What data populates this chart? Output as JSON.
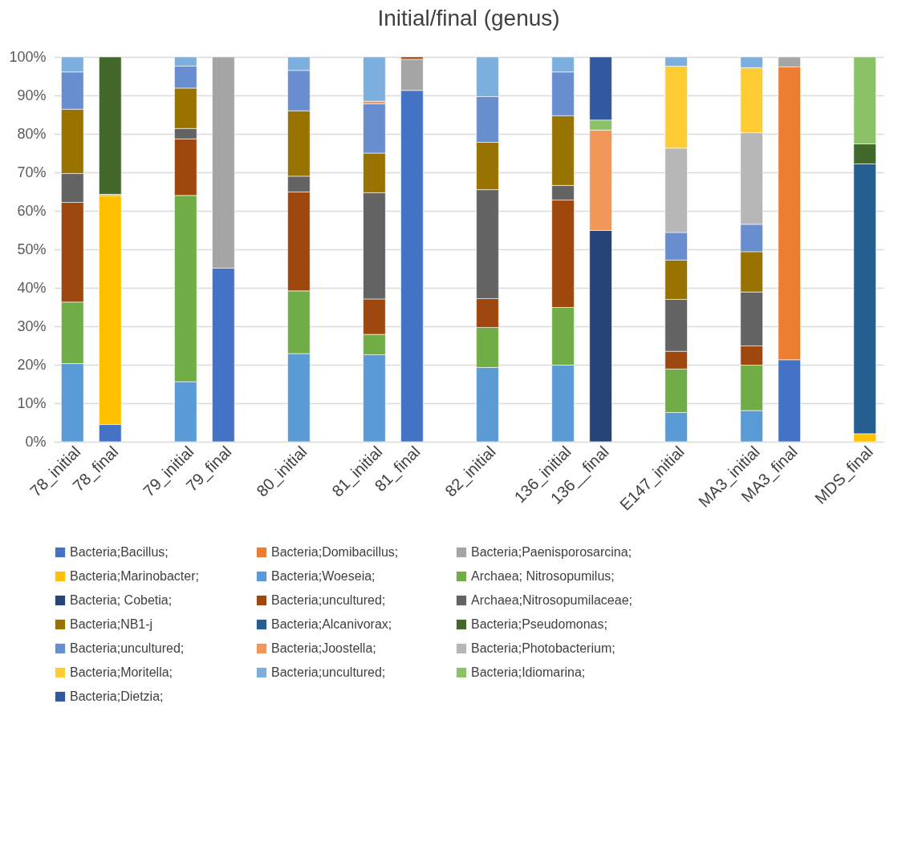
{
  "chart_data": {
    "type": "bar",
    "stacked": true,
    "title": "Initial/final (genus)",
    "categories": [
      "78_initial",
      "78_final",
      null,
      "79_initial",
      "79_final",
      null,
      "80_initial",
      null,
      "81_initial",
      "81_final",
      null,
      "82_initial",
      null,
      "136_initial",
      "136__final",
      null,
      "E147_initial",
      null,
      "MA3_initial",
      "MA3_final",
      null,
      "MDS_final"
    ],
    "ylim": [
      0,
      100
    ],
    "yticks": [
      {
        "value": 0,
        "label": "0%"
      },
      {
        "value": 10,
        "label": "10%"
      },
      {
        "value": 20,
        "label": "20%"
      },
      {
        "value": 30,
        "label": "30%"
      },
      {
        "value": 40,
        "label": "40%"
      },
      {
        "value": 50,
        "label": "50%"
      },
      {
        "value": 60,
        "label": "60%"
      },
      {
        "value": 70,
        "label": "70%"
      },
      {
        "value": 80,
        "label": "80%"
      },
      {
        "value": 90,
        "label": "90%"
      },
      {
        "value": 100,
        "label": "100%"
      }
    ],
    "grid": "y",
    "legend": "bottom",
    "series": [
      {
        "name": "Bacteria;Bacillus;",
        "color": "#4472c4",
        "values": [
          null,
          4.5,
          null,
          null,
          45.1,
          null,
          null,
          null,
          null,
          91.3,
          null,
          null,
          null,
          null,
          null,
          null,
          null,
          null,
          null,
          21.3,
          null,
          null
        ]
      },
      {
        "name": "Bacteria;Domibacillus;",
        "color": "#ed7d31",
        "values": [
          null,
          null,
          null,
          null,
          null,
          null,
          null,
          null,
          null,
          null,
          null,
          null,
          null,
          null,
          null,
          null,
          null,
          null,
          null,
          76.1,
          null,
          null
        ]
      },
      {
        "name": "Bacteria;Paenisporosarcina;",
        "color": "#a5a5a5",
        "values": [
          null,
          null,
          null,
          null,
          54.9,
          null,
          null,
          null,
          null,
          8.1,
          null,
          null,
          null,
          null,
          null,
          null,
          null,
          null,
          null,
          2.6,
          null,
          null
        ]
      },
      {
        "name": "Bacteria;Marinobacter;",
        "color": "#ffc000",
        "values": [
          null,
          59.5,
          null,
          null,
          null,
          null,
          null,
          null,
          null,
          null,
          null,
          null,
          null,
          null,
          null,
          null,
          null,
          null,
          null,
          null,
          null,
          2.1
        ]
      },
      {
        "name": "Bacteria;Woeseia;",
        "color": "#5b9bd5",
        "values": [
          20.3,
          null,
          null,
          15.6,
          null,
          null,
          22.9,
          null,
          22.6,
          null,
          null,
          19.3,
          null,
          19.9,
          null,
          null,
          7.6,
          null,
          8.1,
          null,
          null,
          null
        ]
      },
      {
        "name": "Archaea; Nitrosopumilus;",
        "color": "#70ad47",
        "values": [
          16.0,
          0.3,
          null,
          48.4,
          null,
          null,
          16.3,
          null,
          5.3,
          null,
          null,
          10.4,
          null,
          15.0,
          null,
          null,
          11.3,
          null,
          11.8,
          null,
          null,
          null
        ]
      },
      {
        "name": "Bacteria; Cobetia;",
        "color": "#264478",
        "values": [
          null,
          null,
          null,
          null,
          null,
          null,
          null,
          null,
          null,
          null,
          null,
          null,
          null,
          null,
          54.9,
          null,
          null,
          null,
          null,
          null,
          null,
          null
        ]
      },
      {
        "name": "Bacteria;uncultured;",
        "color": "#9e480e",
        "values": [
          25.9,
          null,
          null,
          14.7,
          null,
          null,
          25.7,
          null,
          9.2,
          0.6,
          null,
          7.5,
          null,
          27.9,
          null,
          null,
          4.6,
          null,
          5.0,
          null,
          null,
          null
        ]
      },
      {
        "name": "Archaea;Nitrosopumilaceae;",
        "color": "#636363",
        "values": [
          7.5,
          null,
          null,
          2.7,
          null,
          null,
          4.1,
          null,
          27.6,
          null,
          null,
          28.3,
          null,
          3.8,
          null,
          null,
          13.5,
          null,
          14.0,
          null,
          null,
          null
        ]
      },
      {
        "name": "Bacteria;NB1-j",
        "color": "#997300",
        "values": [
          16.7,
          null,
          null,
          10.5,
          null,
          null,
          17.0,
          null,
          10.3,
          null,
          null,
          12.3,
          null,
          18.1,
          null,
          null,
          10.2,
          null,
          10.5,
          null,
          null,
          null
        ]
      },
      {
        "name": "Bacteria;Alcanivorax;",
        "color": "#255e91",
        "values": [
          null,
          null,
          null,
          null,
          null,
          null,
          null,
          null,
          null,
          null,
          null,
          null,
          null,
          null,
          null,
          null,
          null,
          null,
          null,
          null,
          null,
          70.1
        ]
      },
      {
        "name": "Bacteria;Pseudomonas;",
        "color": "#43682b",
        "values": [
          null,
          35.7,
          null,
          null,
          null,
          null,
          null,
          null,
          null,
          null,
          null,
          null,
          null,
          null,
          null,
          null,
          null,
          null,
          null,
          null,
          null,
          5.2
        ]
      },
      {
        "name": "Bacteria;uncultured;",
        "color": "#698ed0",
        "values": [
          9.7,
          null,
          null,
          5.7,
          null,
          null,
          10.5,
          null,
          12.8,
          null,
          null,
          11.9,
          null,
          11.4,
          null,
          null,
          7.2,
          null,
          7.1,
          null,
          null,
          null
        ]
      },
      {
        "name": "Bacteria;Joostella;",
        "color": "#f1975a",
        "values": [
          null,
          null,
          null,
          null,
          null,
          null,
          null,
          null,
          0.7,
          null,
          null,
          null,
          null,
          null,
          26.1,
          null,
          null,
          null,
          null,
          null,
          null,
          null
        ]
      },
      {
        "name": "Bacteria;Photobacterium;",
        "color": "#b7b7b7",
        "values": [
          null,
          null,
          null,
          null,
          null,
          null,
          null,
          null,
          null,
          null,
          null,
          null,
          null,
          null,
          null,
          null,
          21.9,
          null,
          23.8,
          null,
          null,
          null
        ]
      },
      {
        "name": "Bacteria;Moritella;",
        "color": "#ffcd33",
        "values": [
          null,
          null,
          null,
          null,
          null,
          null,
          null,
          null,
          null,
          null,
          null,
          null,
          null,
          null,
          null,
          null,
          21.3,
          null,
          16.9,
          null,
          null,
          null
        ]
      },
      {
        "name": "Bacteria;uncultured;",
        "color": "#7cafdd",
        "values": [
          3.9,
          null,
          null,
          2.4,
          null,
          null,
          3.5,
          null,
          11.5,
          null,
          null,
          10.3,
          null,
          3.9,
          null,
          null,
          2.4,
          null,
          2.8,
          null,
          null,
          null
        ]
      },
      {
        "name": "Bacteria;Idiomarina;",
        "color": "#8cc168",
        "values": [
          null,
          null,
          null,
          null,
          null,
          null,
          null,
          null,
          null,
          null,
          null,
          null,
          null,
          null,
          2.6,
          null,
          null,
          null,
          null,
          null,
          null,
          22.6
        ]
      },
      {
        "name": "Bacteria;Dietzia;",
        "color": "#335aa1",
        "values": [
          null,
          null,
          null,
          null,
          null,
          null,
          null,
          null,
          null,
          null,
          null,
          null,
          null,
          null,
          16.4,
          null,
          null,
          null,
          null,
          null,
          null,
          null
        ]
      }
    ]
  }
}
